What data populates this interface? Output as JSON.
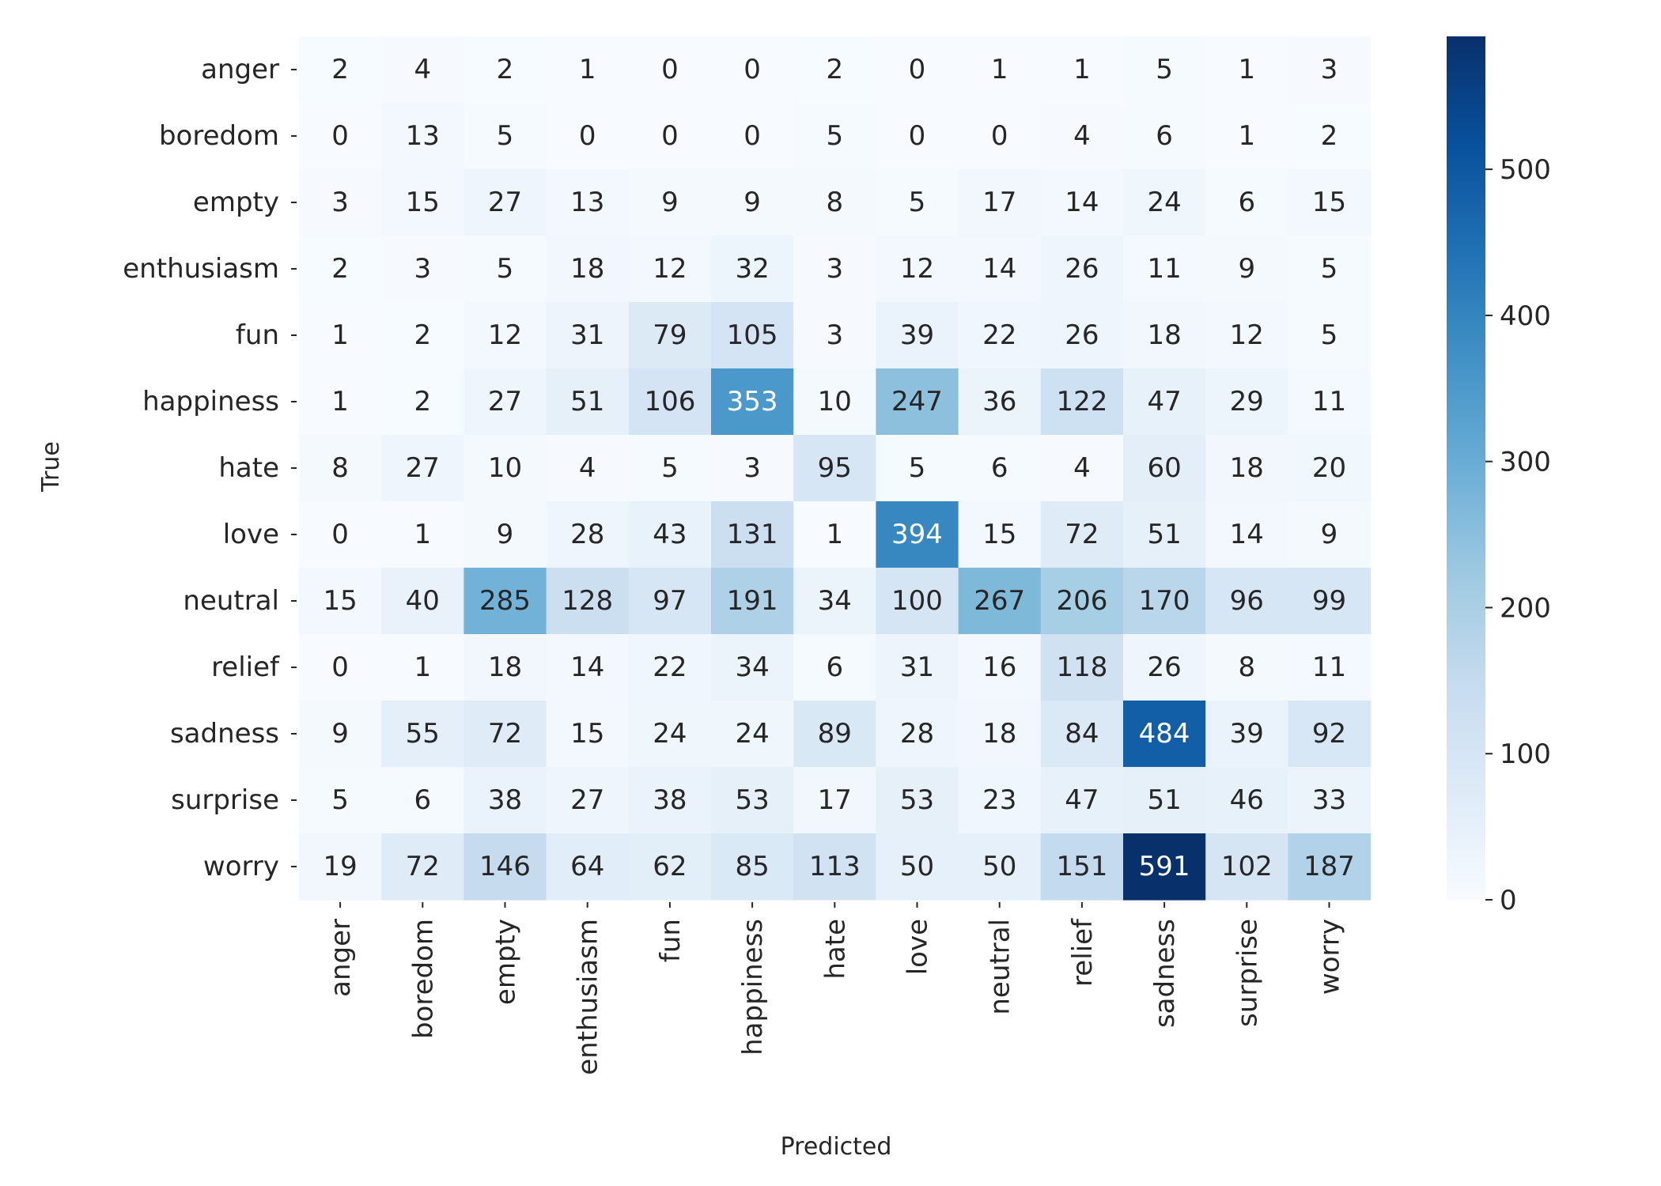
{
  "chart_data": {
    "type": "heatmap",
    "title": "",
    "xlabel": "Predicted",
    "ylabel": "True",
    "x_categories": [
      "anger",
      "boredom",
      "empty",
      "enthusiasm",
      "fun",
      "happiness",
      "hate",
      "love",
      "neutral",
      "relief",
      "sadness",
      "surprise",
      "worry"
    ],
    "y_categories": [
      "anger",
      "boredom",
      "empty",
      "enthusiasm",
      "fun",
      "happiness",
      "hate",
      "love",
      "neutral",
      "relief",
      "sadness",
      "surprise",
      "worry"
    ],
    "values": [
      [
        2,
        4,
        2,
        1,
        0,
        0,
        2,
        0,
        1,
        1,
        5,
        1,
        3
      ],
      [
        0,
        13,
        5,
        0,
        0,
        0,
        5,
        0,
        0,
        4,
        6,
        1,
        2
      ],
      [
        3,
        15,
        27,
        13,
        9,
        9,
        8,
        5,
        17,
        14,
        24,
        6,
        15
      ],
      [
        2,
        3,
        5,
        18,
        12,
        32,
        3,
        12,
        14,
        26,
        11,
        9,
        5
      ],
      [
        1,
        2,
        12,
        31,
        79,
        105,
        3,
        39,
        22,
        26,
        18,
        12,
        5
      ],
      [
        1,
        2,
        27,
        51,
        106,
        353,
        10,
        247,
        36,
        122,
        47,
        29,
        11
      ],
      [
        8,
        27,
        10,
        4,
        5,
        3,
        95,
        5,
        6,
        4,
        60,
        18,
        20
      ],
      [
        0,
        1,
        9,
        28,
        43,
        131,
        1,
        394,
        15,
        72,
        51,
        14,
        9
      ],
      [
        15,
        40,
        285,
        128,
        97,
        191,
        34,
        100,
        267,
        206,
        170,
        96,
        99
      ],
      [
        0,
        1,
        18,
        14,
        22,
        34,
        6,
        31,
        16,
        118,
        26,
        8,
        11
      ],
      [
        9,
        55,
        72,
        15,
        24,
        24,
        89,
        28,
        18,
        84,
        484,
        39,
        92
      ],
      [
        5,
        6,
        38,
        27,
        38,
        53,
        17,
        53,
        23,
        47,
        51,
        46,
        33
      ],
      [
        19,
        72,
        146,
        64,
        62,
        85,
        113,
        50,
        50,
        151,
        591,
        102,
        187
      ]
    ],
    "colorscale": "Blues",
    "vmin": 0,
    "vmax": 591,
    "colorbar_ticks": [
      0,
      100,
      200,
      300,
      400,
      500
    ],
    "colorbar_tick_labels": [
      "0",
      "100",
      "200",
      "300",
      "400",
      "500"
    ],
    "grid": false,
    "legend": "colorbar-right"
  }
}
